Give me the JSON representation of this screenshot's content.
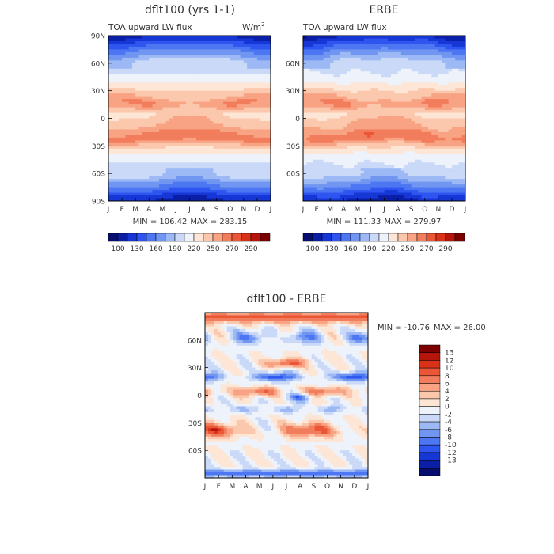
{
  "chart_data": [
    {
      "type": "heatmap",
      "title": "dflt100 (yrs 1-1)",
      "left_label": "TOA upward LW flux",
      "units_base": "W/m",
      "units_exp": "2",
      "x_ticks": [
        "J",
        "F",
        "M",
        "A",
        "M",
        "J",
        "J",
        "A",
        "S",
        "O",
        "N",
        "D",
        "J"
      ],
      "y_ticks": [
        "90N",
        "60N",
        "30N",
        "0",
        "30S",
        "60S",
        "90S"
      ],
      "min_label": "MIN = 106.42",
      "max_label": "MAX = 283.15",
      "colorbar_labels": [
        "100",
        "130",
        "160",
        "190",
        "220",
        "250",
        "270",
        "290"
      ],
      "colorbar_colors": [
        "#060e6e",
        "#0a1fa6",
        "#1636d6",
        "#2e55ef",
        "#4d76f2",
        "#7096f2",
        "#9cb9f5",
        "#cad9f7",
        "#eef3fb",
        "#fde6d6",
        "#fbc8ad",
        "#f8a383",
        "#f27d5c",
        "#ea5636",
        "#d93218",
        "#b5150a",
        "#7d0000"
      ],
      "ylim": [
        -90,
        90
      ]
    },
    {
      "type": "heatmap",
      "title": "ERBE",
      "left_label": "TOA upward LW flux",
      "x_ticks": [
        "J",
        "F",
        "M",
        "A",
        "M",
        "J",
        "J",
        "A",
        "S",
        "O",
        "N",
        "D",
        "J"
      ],
      "y_ticks": [
        "60N",
        "30N",
        "0",
        "30S",
        "60S"
      ],
      "min_label": "MIN = 111.33",
      "max_label": "MAX = 279.97",
      "colorbar_labels": [
        "100",
        "130",
        "160",
        "190",
        "220",
        "250",
        "270",
        "290"
      ],
      "ylim": [
        -90,
        90
      ]
    },
    {
      "type": "heatmap",
      "title": "dflt100 - ERBE",
      "x_ticks": [
        "J",
        "F",
        "M",
        "A",
        "M",
        "J",
        "J",
        "A",
        "S",
        "O",
        "N",
        "D",
        "J"
      ],
      "y_ticks": [
        "60N",
        "30N",
        "0",
        "30S",
        "60S"
      ],
      "min_label": "MIN = -10.76",
      "max_label": "MAX =  26.00",
      "colorbar_labels": [
        "13",
        "12",
        "10",
        "8",
        "6",
        "4",
        "2",
        "0",
        "-2",
        "-4",
        "-6",
        "-8",
        "-10",
        "-12",
        "-13"
      ],
      "colorbar_colors": [
        "#7d0000",
        "#b5150a",
        "#d93218",
        "#ea5636",
        "#f27d5c",
        "#f8a383",
        "#fbc8ad",
        "#fde6d6",
        "#eef3fb",
        "#cad9f7",
        "#9cb9f5",
        "#7096f2",
        "#4d76f2",
        "#2e55ef",
        "#1636d6",
        "#0a1fa6",
        "#060e6e"
      ],
      "ylim": [
        -90,
        90
      ]
    }
  ]
}
